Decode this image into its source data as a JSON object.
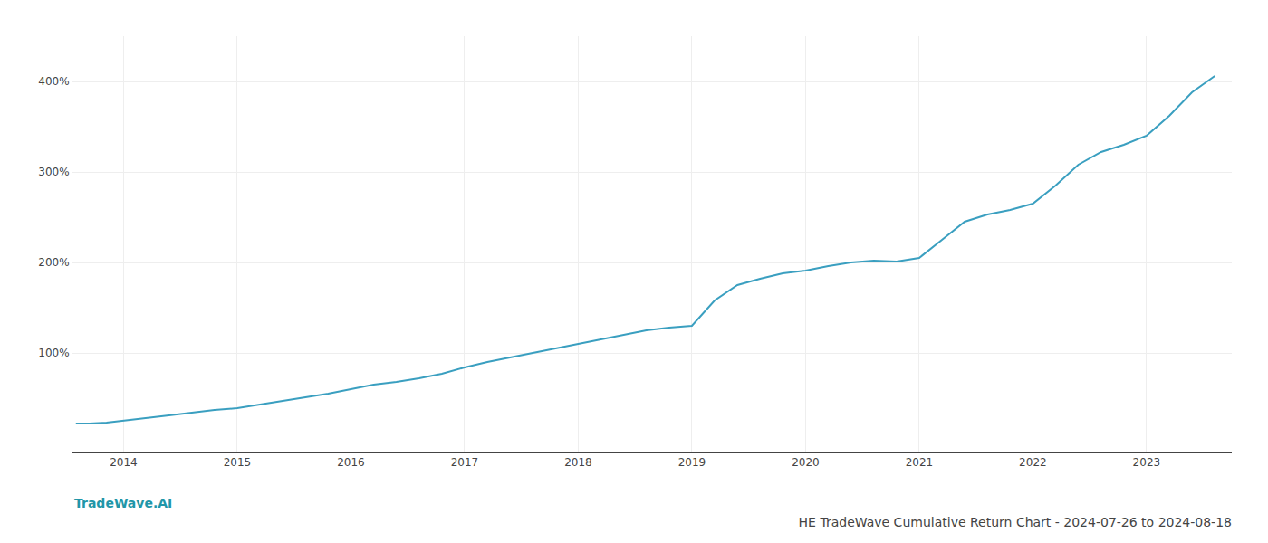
{
  "chart_data": {
    "type": "line",
    "title": "HE TradeWave Cumulative Return Chart - 2024-07-26 to 2024-08-18",
    "annotations": [
      {
        "text": "TradeWave.AI",
        "color": "#2196a8"
      }
    ],
    "color": "#3a9fc0",
    "grid": true,
    "x": [
      2013.58,
      2013.7,
      2013.85,
      2014.0,
      2014.2,
      2014.4,
      2014.6,
      2014.8,
      2015.0,
      2015.2,
      2015.4,
      2015.6,
      2015.8,
      2016.0,
      2016.2,
      2016.4,
      2016.6,
      2016.8,
      2017.0,
      2017.2,
      2017.4,
      2017.6,
      2017.8,
      2018.0,
      2018.2,
      2018.4,
      2018.6,
      2018.8,
      2019.0,
      2019.2,
      2019.4,
      2019.6,
      2019.8,
      2020.0,
      2020.2,
      2020.4,
      2020.6,
      2020.8,
      2021.0,
      2021.2,
      2021.4,
      2021.6,
      2021.8,
      2022.0,
      2022.2,
      2022.4,
      2022.6,
      2022.8,
      2023.0,
      2023.2,
      2023.4,
      2023.6
    ],
    "values": [
      22,
      22,
      23,
      25,
      28,
      31,
      34,
      37,
      39,
      43,
      47,
      51,
      55,
      60,
      65,
      68,
      72,
      77,
      84,
      90,
      95,
      100,
      105,
      110,
      115,
      120,
      125,
      128,
      130,
      158,
      175,
      182,
      188,
      191,
      196,
      200,
      202,
      201,
      205,
      225,
      245,
      253,
      258,
      265,
      285,
      308,
      322,
      330,
      340,
      362,
      388,
      406
    ],
    "xlim": [
      2013.55,
      2023.75
    ],
    "xticks": [
      2014,
      2015,
      2016,
      2017,
      2018,
      2019,
      2020,
      2021,
      2022,
      2023
    ],
    "ylim": [
      -10,
      450
    ],
    "yticks": [
      {
        "value": 100,
        "label": "100%"
      },
      {
        "value": 200,
        "label": "200%"
      },
      {
        "value": 300,
        "label": "300%"
      },
      {
        "value": 400,
        "label": "400%"
      }
    ]
  }
}
